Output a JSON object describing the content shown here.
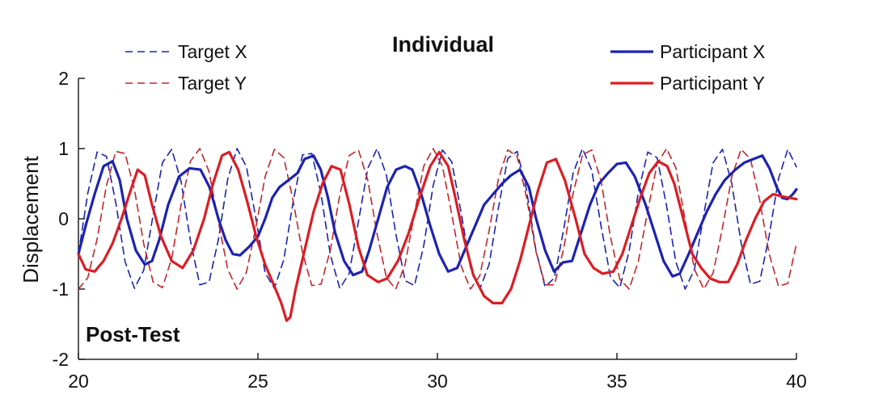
{
  "chart_data": {
    "type": "line",
    "title": "Individual",
    "xlabel": "",
    "ylabel": "Displacement",
    "xlim": [
      20,
      40
    ],
    "ylim": [
      -2,
      2
    ],
    "xticks": [
      20,
      25,
      30,
      35,
      40
    ],
    "yticks": [
      -2,
      -1,
      0,
      1,
      2
    ],
    "grid": false,
    "legend_placement": "top, split left and right of title",
    "annotation": "Post-Test",
    "series": [
      {
        "name": "Target X",
        "style": "dashed",
        "color": "#1c23b0",
        "x": [
          20.0,
          20.26,
          20.52,
          20.78,
          21.04,
          21.3,
          21.56,
          21.82,
          22.08,
          22.34,
          22.6,
          22.86,
          23.12,
          23.38,
          23.64,
          23.9,
          24.16,
          24.42,
          24.68,
          24.94,
          25.2,
          25.46,
          25.72,
          25.98,
          26.24,
          26.5,
          26.76,
          27.02,
          27.28,
          27.54,
          27.8,
          28.06,
          28.32,
          28.58,
          28.84,
          29.1,
          29.36,
          29.62,
          29.88,
          30.14,
          30.4,
          30.66,
          30.92,
          31.18,
          31.44,
          31.7,
          31.96,
          32.22,
          32.48,
          32.74,
          33.0,
          33.26,
          33.52,
          33.78,
          34.04,
          34.3,
          34.56,
          34.82,
          35.08,
          35.34,
          35.6,
          35.86,
          36.12,
          36.38,
          36.64,
          36.9,
          37.16,
          37.42,
          37.68,
          37.94,
          38.2,
          38.46,
          38.72,
          38.98,
          39.24,
          39.5,
          39.76,
          40.0
        ],
        "y": [
          -0.5,
          0.36,
          0.95,
          0.89,
          0.23,
          -0.61,
          -0.99,
          -0.73,
          0.06,
          0.8,
          0.99,
          0.53,
          -0.31,
          -0.94,
          -0.9,
          -0.29,
          0.57,
          1.0,
          0.74,
          0.02,
          -0.77,
          -0.99,
          -0.58,
          0.24,
          0.91,
          0.93,
          0.35,
          -0.52,
          -0.99,
          -0.78,
          -0.04,
          0.72,
          1.0,
          0.62,
          -0.21,
          -0.88,
          -0.95,
          -0.38,
          0.47,
          0.98,
          0.81,
          0.09,
          -0.69,
          -1.0,
          -0.65,
          0.16,
          0.86,
          0.96,
          0.42,
          -0.44,
          -0.97,
          -0.84,
          -0.14,
          0.65,
          1.0,
          0.69,
          -0.11,
          -0.83,
          -0.98,
          -0.46,
          0.39,
          0.95,
          0.87,
          0.19,
          -0.61,
          -1.0,
          -0.72,
          0.06,
          0.8,
          0.99,
          0.5,
          -0.34,
          -0.93,
          -0.89,
          -0.24,
          0.57,
          0.99,
          0.74
        ]
      },
      {
        "name": "Target Y",
        "style": "dashed",
        "color": "#c2262a",
        "x": [
          20.0,
          20.26,
          20.52,
          20.78,
          21.04,
          21.3,
          21.56,
          21.82,
          22.08,
          22.34,
          22.6,
          22.86,
          23.12,
          23.38,
          23.64,
          23.9,
          24.16,
          24.42,
          24.68,
          24.94,
          25.2,
          25.46,
          25.72,
          25.98,
          26.24,
          26.5,
          26.76,
          27.02,
          27.28,
          27.54,
          27.8,
          28.06,
          28.32,
          28.58,
          28.84,
          29.1,
          29.36,
          29.62,
          29.88,
          30.14,
          30.4,
          30.66,
          30.92,
          31.18,
          31.44,
          31.7,
          31.96,
          32.22,
          32.48,
          32.74,
          33.0,
          33.26,
          33.52,
          33.78,
          34.04,
          34.3,
          34.56,
          34.82,
          35.08,
          35.34,
          35.6,
          35.86,
          36.12,
          36.38,
          36.64,
          36.9,
          37.16,
          37.42,
          37.68,
          37.94,
          38.2,
          38.46,
          38.72,
          38.98,
          39.24,
          39.5,
          39.76,
          40.0
        ],
        "y": [
          -1.0,
          -0.84,
          -0.29,
          0.47,
          0.96,
          0.93,
          0.42,
          -0.36,
          -0.9,
          -0.98,
          -0.56,
          0.2,
          0.82,
          1.0,
          0.67,
          -0.05,
          -0.72,
          -1.0,
          -0.76,
          -0.13,
          0.6,
          0.99,
          0.87,
          0.26,
          -0.48,
          -0.95,
          -0.93,
          -0.44,
          0.34,
          0.9,
          0.98,
          0.55,
          -0.22,
          -0.84,
          -1.0,
          -0.65,
          0.08,
          0.75,
          1.0,
          0.75,
          0.06,
          -0.67,
          -1.0,
          -0.81,
          -0.17,
          0.57,
          0.98,
          0.89,
          0.31,
          -0.46,
          -0.94,
          -0.94,
          -0.42,
          0.36,
          0.91,
          0.98,
          0.53,
          -0.26,
          -0.86,
          -1.0,
          -0.6,
          0.12,
          0.78,
          1.0,
          0.73,
          -0.02,
          -0.72,
          -1.0,
          -0.77,
          -0.13,
          0.6,
          0.99,
          0.85,
          0.26,
          -0.5,
          -0.96,
          -0.92,
          -0.36
        ]
      },
      {
        "name": "Participant X",
        "style": "solid",
        "color": "#1c23b0",
        "x": [
          20.0,
          20.2,
          20.45,
          20.7,
          20.95,
          21.15,
          21.35,
          21.6,
          21.85,
          22.05,
          22.25,
          22.5,
          22.8,
          23.1,
          23.4,
          23.65,
          23.9,
          24.1,
          24.3,
          24.5,
          24.75,
          25.0,
          25.2,
          25.4,
          25.6,
          25.85,
          26.1,
          26.3,
          26.55,
          26.75,
          26.95,
          27.15,
          27.4,
          27.65,
          27.9,
          28.1,
          28.35,
          28.6,
          28.85,
          29.1,
          29.3,
          29.55,
          29.8,
          30.05,
          30.3,
          30.55,
          30.8,
          31.05,
          31.3,
          31.55,
          31.8,
          32.05,
          32.3,
          32.55,
          32.75,
          33.0,
          33.25,
          33.5,
          33.75,
          34.0,
          34.25,
          34.5,
          34.75,
          35.0,
          35.25,
          35.5,
          35.8,
          36.05,
          36.3,
          36.55,
          36.75,
          37.0,
          37.25,
          37.5,
          37.75,
          38.0,
          38.3,
          38.55,
          38.8,
          39.05,
          39.25,
          39.45,
          39.6,
          39.75,
          39.9,
          40.0
        ],
        "y": [
          -0.5,
          -0.1,
          0.35,
          0.75,
          0.82,
          0.55,
          0.0,
          -0.45,
          -0.65,
          -0.6,
          -0.3,
          0.2,
          0.6,
          0.72,
          0.7,
          0.45,
          0.0,
          -0.3,
          -0.5,
          -0.52,
          -0.4,
          -0.25,
          0.0,
          0.3,
          0.45,
          0.55,
          0.65,
          0.85,
          0.9,
          0.7,
          0.3,
          -0.2,
          -0.6,
          -0.8,
          -0.75,
          -0.45,
          0.0,
          0.45,
          0.7,
          0.75,
          0.7,
          0.35,
          -0.1,
          -0.5,
          -0.75,
          -0.7,
          -0.4,
          -0.1,
          0.2,
          0.35,
          0.5,
          0.62,
          0.7,
          0.45,
          0.0,
          -0.45,
          -0.75,
          -0.62,
          -0.6,
          -0.2,
          0.2,
          0.5,
          0.65,
          0.78,
          0.8,
          0.6,
          0.2,
          -0.2,
          -0.6,
          -0.82,
          -0.78,
          -0.5,
          -0.2,
          0.1,
          0.35,
          0.55,
          0.7,
          0.8,
          0.85,
          0.9,
          0.72,
          0.45,
          0.3,
          0.28,
          0.35,
          0.42
        ]
      },
      {
        "name": "Participant Y",
        "style": "solid",
        "color": "#d91e24",
        "x": [
          20.0,
          20.2,
          20.45,
          20.7,
          20.95,
          21.2,
          21.45,
          21.65,
          21.85,
          22.05,
          22.3,
          22.6,
          22.9,
          23.2,
          23.5,
          23.75,
          24.0,
          24.2,
          24.45,
          24.7,
          24.95,
          25.2,
          25.45,
          25.65,
          25.8,
          25.9,
          26.05,
          26.3,
          26.55,
          26.8,
          27.05,
          27.3,
          27.55,
          27.8,
          28.05,
          28.35,
          28.6,
          28.9,
          29.2,
          29.5,
          29.8,
          30.05,
          30.3,
          30.5,
          30.75,
          31.0,
          31.3,
          31.55,
          31.8,
          32.05,
          32.3,
          32.55,
          32.8,
          33.05,
          33.3,
          33.55,
          33.85,
          34.1,
          34.35,
          34.6,
          34.9,
          35.15,
          35.4,
          35.65,
          35.9,
          36.15,
          36.4,
          36.6,
          36.85,
          37.1,
          37.35,
          37.6,
          37.85,
          38.1,
          38.35,
          38.6,
          38.85,
          39.1,
          39.35,
          39.6,
          39.8,
          40.0
        ],
        "y": [
          -0.5,
          -0.72,
          -0.75,
          -0.6,
          -0.35,
          0.0,
          0.4,
          0.7,
          0.62,
          0.2,
          -0.25,
          -0.6,
          -0.7,
          -0.45,
          0.0,
          0.5,
          0.9,
          0.95,
          0.7,
          0.25,
          -0.25,
          -0.65,
          -0.95,
          -1.2,
          -1.45,
          -1.4,
          -1.0,
          -0.45,
          0.1,
          0.5,
          0.75,
          0.7,
          0.2,
          -0.4,
          -0.8,
          -0.9,
          -0.85,
          -0.6,
          -0.2,
          0.3,
          0.75,
          0.95,
          0.75,
          0.3,
          -0.3,
          -0.8,
          -1.1,
          -1.2,
          -1.2,
          -1.0,
          -0.6,
          -0.1,
          0.4,
          0.8,
          0.85,
          0.55,
          0.0,
          -0.5,
          -0.7,
          -0.78,
          -0.75,
          -0.5,
          -0.1,
          0.3,
          0.65,
          0.82,
          0.75,
          0.5,
          0.0,
          -0.5,
          -0.7,
          -0.85,
          -0.9,
          -0.9,
          -0.65,
          -0.3,
          0.0,
          0.25,
          0.35,
          0.32,
          0.3,
          0.28
        ]
      }
    ]
  }
}
